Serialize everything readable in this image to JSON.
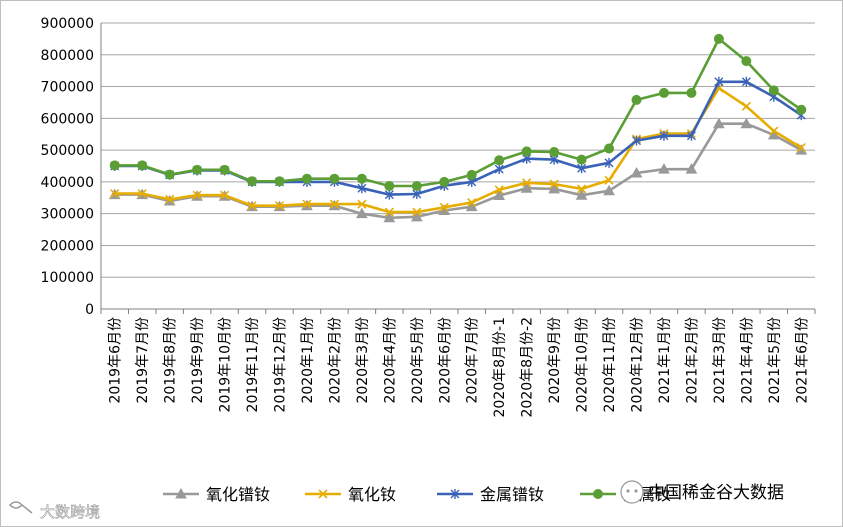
{
  "chart_data": {
    "type": "line",
    "title": "",
    "xlabel": "",
    "ylabel": "",
    "ylim": [
      0,
      900000
    ],
    "yticks": [
      0,
      100000,
      200000,
      300000,
      400000,
      500000,
      600000,
      700000,
      800000,
      900000
    ],
    "grid": "horizontal",
    "legend_position": "bottom",
    "categories": [
      "2019年6月份",
      "2019年7月份",
      "2019年8月份",
      "2019年9月份",
      "2019年10月份",
      "2019年11月份",
      "2019年12月份",
      "2020年1月份",
      "2020年2月份",
      "2020年3月份",
      "2020年4月份",
      "2020年5月份",
      "2020年6月份",
      "2020年7月份",
      "2020年8月份-1",
      "2020年8月份-2",
      "2020年9月份",
      "2020年10月份",
      "2020年11月份",
      "2020年12月份",
      "2021年1月份",
      "2021年2月份",
      "2021年3月份",
      "2021年4月份",
      "2021年5月份",
      "2021年6月份"
    ],
    "series": [
      {
        "name": "氧化镨钕",
        "color": "#999999",
        "marker": "triangle",
        "values": [
          360000,
          360000,
          340000,
          355000,
          355000,
          322000,
          322000,
          325000,
          325000,
          300000,
          287000,
          290000,
          310000,
          322000,
          357000,
          380000,
          378000,
          358000,
          372000,
          428000,
          440000,
          440000,
          583000,
          583000,
          548000,
          500000
        ]
      },
      {
        "name": "氧化钕",
        "color": "#e6ac00",
        "marker": "x",
        "values": [
          363000,
          363000,
          345000,
          358000,
          358000,
          325000,
          325000,
          330000,
          330000,
          330000,
          305000,
          305000,
          320000,
          335000,
          375000,
          397000,
          393000,
          378000,
          405000,
          535000,
          552000,
          552000,
          695000,
          638000,
          560000,
          508000
        ]
      },
      {
        "name": "金属镨钕",
        "color": "#3a63b8",
        "marker": "star",
        "values": [
          450000,
          450000,
          422000,
          436000,
          436000,
          400000,
          400000,
          400000,
          400000,
          380000,
          360000,
          362000,
          388000,
          400000,
          440000,
          473000,
          470000,
          443000,
          460000,
          530000,
          545000,
          545000,
          715000,
          715000,
          668000,
          610000
        ]
      },
      {
        "name": "金属钕",
        "color": "#5b9e35",
        "marker": "circle",
        "values": [
          452000,
          452000,
          423000,
          438000,
          438000,
          402000,
          402000,
          410000,
          410000,
          410000,
          387000,
          387000,
          400000,
          422000,
          468000,
          496000,
          494000,
          470000,
          505000,
          658000,
          680000,
          680000,
          850000,
          780000,
          688000,
          627000
        ]
      }
    ]
  },
  "watermarks": {
    "right": "中国稀金谷大数据",
    "left": "大数跨境"
  }
}
